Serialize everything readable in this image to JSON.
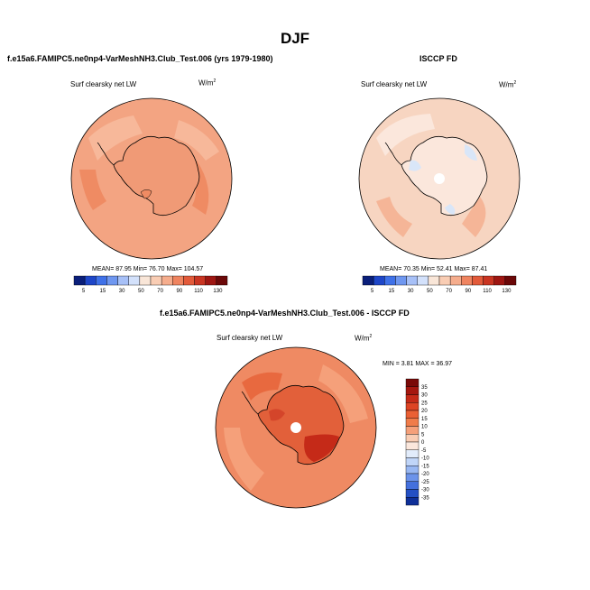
{
  "figure": {
    "title": "DJF"
  },
  "panels": [
    {
      "title": "f.e15a6.FAMIPC5.ne0np4-VarMeshNH3.Club_Test.006 (yrs 1979-1980)",
      "field": "Surf clearsky net LW",
      "units_base": "W/m",
      "units_exp": "2",
      "stats": "MEAN=  87.95  Min=  76.70  Max=  104.57",
      "fill_color": "#f3a482",
      "colorbar": {
        "labels": [
          "5",
          "15",
          "30",
          "50",
          "70",
          "90",
          "110",
          "130"
        ],
        "colors": [
          "#0a1f7a",
          "#1e46c8",
          "#3f71e8",
          "#6f97f0",
          "#a7c0f7",
          "#d3e1fb",
          "#f9e6d8",
          "#f9cdb4",
          "#f5ad8d",
          "#ef8460",
          "#e25a3a",
          "#c93522",
          "#9e1612",
          "#6b0808"
        ]
      }
    },
    {
      "title": "ISCCP FD",
      "field": "Surf clearsky net LW",
      "units_base": "W/m",
      "units_exp": "2",
      "stats": "MEAN=  70.35  Min=  52.41  Max=  87.41",
      "fill_color": "#f7d5c1",
      "colorbar": {
        "labels": [
          "5",
          "15",
          "30",
          "50",
          "70",
          "90",
          "110",
          "130"
        ],
        "colors": [
          "#0a1f7a",
          "#1e46c8",
          "#3f71e8",
          "#6f97f0",
          "#a7c0f7",
          "#d3e1fb",
          "#f9e6d8",
          "#f9cdb4",
          "#f5ad8d",
          "#ef8460",
          "#e25a3a",
          "#c93522",
          "#9e1612",
          "#6b0808"
        ]
      }
    },
    {
      "title": "f.e15a6.FAMIPC5.ne0np4-VarMeshNH3.Club_Test.006 - ISCCP FD",
      "field": "Surf clearsky net LW",
      "units_base": "W/m",
      "units_exp": "2",
      "stats": "MIN =   3.81  MAX =  36.97",
      "fill_color": "#ef8a63",
      "colorbar": {
        "labels": [
          "35",
          "30",
          "25",
          "20",
          "15",
          "10",
          "5",
          "0",
          "-5",
          "-10",
          "-15",
          "-20",
          "-25",
          "-30",
          "-35"
        ],
        "colors": [
          "#7a0a08",
          "#a5170f",
          "#c52a18",
          "#dd4424",
          "#ea6034",
          "#f07c4a",
          "#f5a07a",
          "#f9cdb4",
          "#fbe7dc",
          "#e2ecfb",
          "#c0d5f8",
          "#98b7f2",
          "#6c93ea",
          "#4470dd",
          "#2450c4",
          "#0e2f98"
        ]
      }
    }
  ],
  "colors": {
    "coastline": "#000000",
    "pole_hole": "#ffffff",
    "panel1_ice": "#f09a76",
    "panel2_ice_low": "#d9e6f8",
    "panel3_ice_high": "#d4452a",
    "panel3_ocean_hi": "#e8693f"
  }
}
